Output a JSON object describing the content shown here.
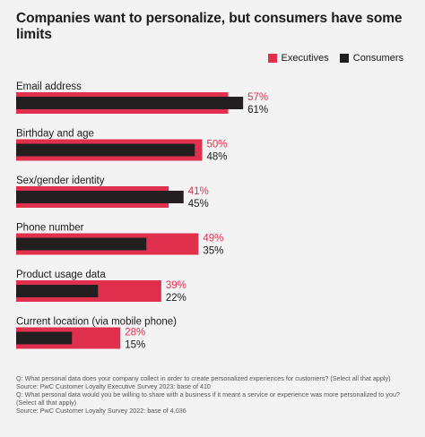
{
  "chart_data": {
    "type": "bar",
    "title": "Companies want to personalize, but consumers have some limits",
    "categories": [
      "Email address",
      "Birthday and age",
      "Sex/gender identity",
      "Phone number",
      "Product usage data",
      "Current location (via mobile phone)"
    ],
    "series": [
      {
        "name": "Executives",
        "values": [
          57,
          50,
          41,
          49,
          39,
          28
        ],
        "labels": [
          "57%",
          "50%",
          "41%",
          "49%",
          "39%",
          "28%"
        ],
        "color": "#e0304e"
      },
      {
        "name": "Consumers",
        "values": [
          61,
          48,
          45,
          35,
          22,
          15
        ],
        "labels": [
          "61%",
          "48%",
          "45%",
          "35%",
          "22%",
          "15%"
        ],
        "color": "#231f20"
      }
    ],
    "value_unit": "%",
    "legend_position": "top-right",
    "grid": false
  },
  "footnotes": [
    "Q: What personal data does your company collect in order to create personalized experiences for customers? (Select all that apply)",
    "Source: PwC Customer Loyalty Executive Survey 2023: base of 410",
    "Q: What personal data would you be willing to share with a business if it meant a service or experience was more personalized to you? (Select all that apply)",
    "Source: PwC Customer Loyalty Survey 2022: base of 4,036"
  ]
}
